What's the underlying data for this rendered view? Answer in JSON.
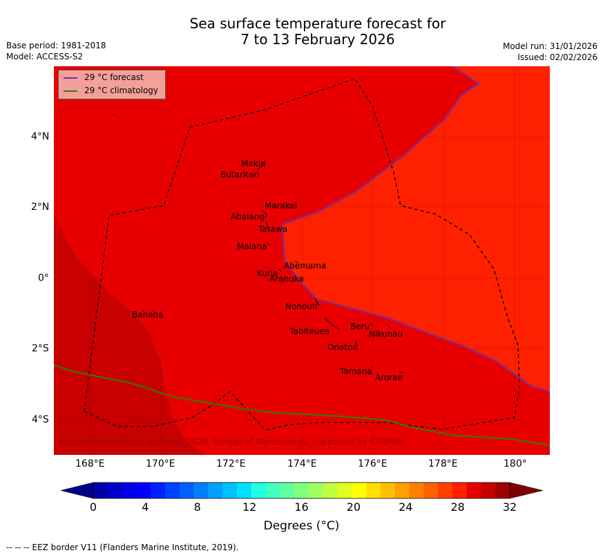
{
  "title": {
    "line1": "Sea surface temperature forecast for",
    "line2": "7 to 13 February 2026"
  },
  "meta": {
    "base_period": "Base period: 1981-2018",
    "model": "Model: ACCESS-S2",
    "model_run": "Model run: 31/01/2026",
    "issued": "Issued: 02/02/2026"
  },
  "legend": {
    "forecast": "29 °C  forecast",
    "climatology": "29 °C  climatology",
    "forecast_color": "#7030a0",
    "climatology_color": "#2e7d00"
  },
  "axes": {
    "lat_ticks": [
      "4°N",
      "2°N",
      "0°",
      "2°S",
      "4°S"
    ],
    "lon_ticks": [
      "168°E",
      "170°E",
      "172°E",
      "174°E",
      "176°E",
      "178°E",
      "180°"
    ]
  },
  "islands": [
    {
      "name": "Makin"
    },
    {
      "name": "Butaritari"
    },
    {
      "name": "Marakei"
    },
    {
      "name": "Abaiang"
    },
    {
      "name": "Tarawa"
    },
    {
      "name": "Maiana"
    },
    {
      "name": "Abemama"
    },
    {
      "name": "Kuria"
    },
    {
      "name": "Aranuka"
    },
    {
      "name": "Nonouti"
    },
    {
      "name": "Banaba"
    },
    {
      "name": "Beru"
    },
    {
      "name": "Nikunau"
    },
    {
      "name": "Tabiteuea"
    },
    {
      "name": "Onotoa"
    },
    {
      "name": "Tamana"
    },
    {
      "name": "Arorae"
    }
  ],
  "copyright": "© Commonwealth of Australia 2026, Bureau of Meteorology, supported by COSPPac",
  "colorbar": {
    "ticks": [
      "0",
      "4",
      "8",
      "12",
      "16",
      "20",
      "24",
      "28",
      "32"
    ],
    "label": "Degrees (°C)",
    "colors": [
      "#0000a8",
      "#0000c8",
      "#0000e6",
      "#0000ff",
      "#0020ff",
      "#0040ff",
      "#0060ff",
      "#0080ff",
      "#00a0ff",
      "#00c0ff",
      "#00e0ff",
      "#20ffe0",
      "#40ffc0",
      "#60ffa0",
      "#80ff80",
      "#a0ff60",
      "#c0ff40",
      "#e0ff20",
      "#ffff00",
      "#ffe000",
      "#ffc000",
      "#ffa000",
      "#ff8000",
      "#ff6000",
      "#ff4000",
      "#ff2000",
      "#e80000",
      "#c80000",
      "#a00000"
    ],
    "low_color": "#00008b",
    "high_color": "#800000"
  },
  "map_colors": {
    "c29_30": "#ff2000",
    "c30_31": "#e80000",
    "c31_32": "#c80000"
  },
  "footer": "--  --  -- EEZ border V11 (Flanders Marine Institute, 2019)."
}
